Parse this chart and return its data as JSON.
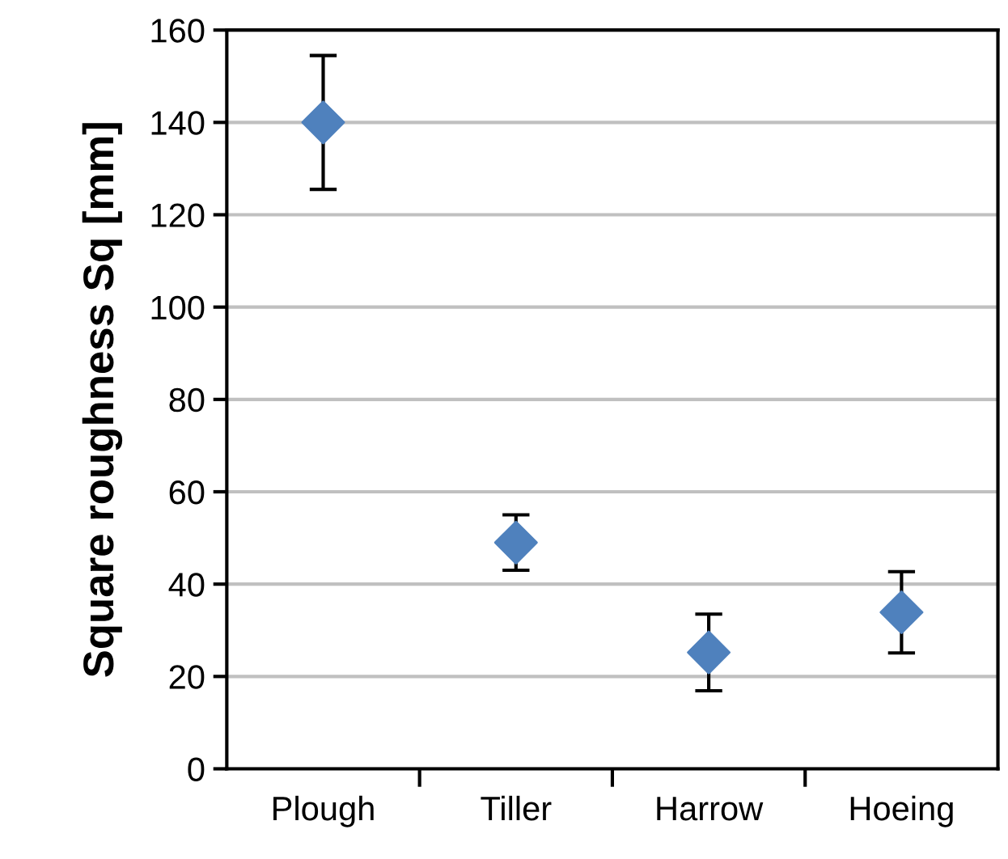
{
  "chart_data": {
    "type": "scatter",
    "ylabel": "Square roughness Sq [mm]",
    "categories": [
      "Plough",
      "Tiller",
      "Harrow",
      "Hoeing"
    ],
    "series": [
      {
        "color": "#4f81bd",
        "values": [
          140,
          49,
          25.2,
          33.9
        ],
        "errors": [
          14.5,
          6,
          8.3,
          8.8
        ]
      }
    ],
    "marker": "diamond",
    "ylim": [
      0,
      160
    ],
    "yticks": [
      0,
      20,
      40,
      60,
      80,
      100,
      120,
      140,
      160
    ],
    "grid": "y",
    "legend": false
  }
}
